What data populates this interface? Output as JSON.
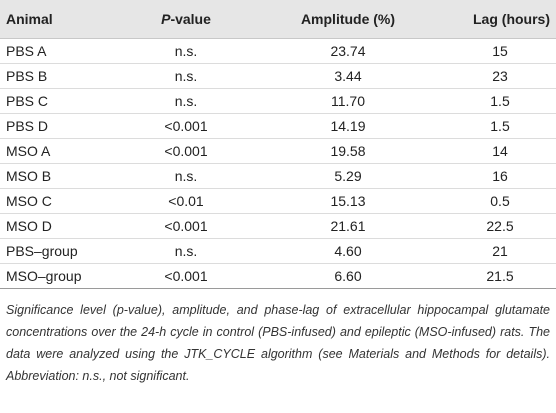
{
  "table": {
    "header": [
      "Animal",
      "P-value",
      "Amplitude (%)",
      "Lag (hours)"
    ],
    "rows": [
      [
        "PBS A",
        "n.s.",
        "23.74",
        "15"
      ],
      [
        "PBS B",
        "n.s.",
        "3.44",
        "23"
      ],
      [
        "PBS C",
        "n.s.",
        "11.70",
        "1.5"
      ],
      [
        "PBS D",
        "<0.001",
        "14.19",
        "1.5"
      ],
      [
        "MSO A",
        "<0.001",
        "19.58",
        "14"
      ],
      [
        "MSO B",
        "n.s.",
        "5.29",
        "16"
      ],
      [
        "MSO C",
        "<0.01",
        "15.13",
        "0.5"
      ],
      [
        "MSO D",
        "<0.001",
        "21.61",
        "22.5"
      ],
      [
        "PBS–group",
        "n.s.",
        "4.60",
        "21"
      ],
      [
        "MSO–group",
        "<0.001",
        "6.60",
        "21.5"
      ]
    ]
  },
  "caption": "Significance level (p-value), amplitude, and phase-lag of extracellular hippocampal glutamate concentrations over the 24-h cycle in control (PBS-infused) and epileptic (MSO-infused) rats. The data were analyzed using the JTK_CYCLE algorithm (see Materials and Methods for details). Abbreviation: n.s., not significant."
}
